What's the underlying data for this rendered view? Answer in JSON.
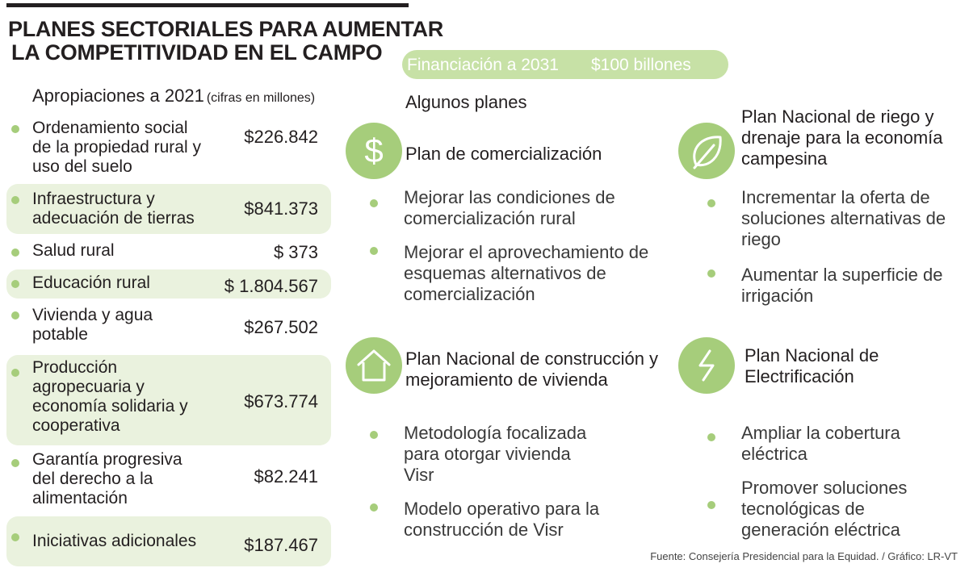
{
  "title": {
    "line1": "PLANES SECTORIALES PARA AUMENTAR",
    "line2": "LA COMPETITIVIDAD EN EL CAMPO"
  },
  "appropriations": {
    "heading": "Apropiaciones a 2021",
    "subheading": "(cifras en millones)",
    "items": [
      {
        "label": "Ordenamiento social de la propiedad rural y uso del suelo",
        "amount": "$226.842"
      },
      {
        "label": "Infraestructura y adecuación de tierras",
        "amount": "$841.373"
      },
      {
        "label": "Salud rural",
        "amount": "$ 373"
      },
      {
        "label": "Educación rural",
        "amount": "$ 1.804.567"
      },
      {
        "label": "Vivienda y agua potable",
        "amount": "$267.502"
      },
      {
        "label": "Producción agropecuaria y economía solidaria y cooperativa",
        "amount": "$673.774"
      },
      {
        "label": "Garantía progresiva del derecho a la alimentación",
        "amount": "$82.241"
      },
      {
        "label": "Iniciativas adicionales",
        "amount": "$187.467"
      }
    ]
  },
  "financing": {
    "label": "Financiación a 2031",
    "value": "$100 billones"
  },
  "plans": {
    "heading": "Algunos planes",
    "items": [
      {
        "icon": "dollar-icon",
        "title": "Plan de comercialización",
        "points": [
          "Mejorar las condiciones de comercialización rural",
          "Mejorar el aprovechamiento de esquemas alternativos de comercialización"
        ]
      },
      {
        "icon": "leaf-icon",
        "title": "Plan Nacional de riego y drenaje para la economía campesina",
        "points": [
          "Incrementar la oferta de soluciones alternativas de riego",
          "Aumentar la superficie de irrigación"
        ]
      },
      {
        "icon": "house-icon",
        "title": "Plan Nacional de construcción y mejoramiento de vivienda",
        "points": [
          "Metodología focalizada para otorgar vivienda Visr",
          "Modelo operativo para la construcción de Visr"
        ]
      },
      {
        "icon": "lightning-icon",
        "title": "Plan Nacional de Electrificación",
        "points": [
          "Ampliar la cobertura eléctrica",
          "Promover soluciones tecnológicas de generación eléctrica"
        ]
      }
    ]
  },
  "source": "Fuente: Consejería Presidencial para la Equidad. / Gráfico: LR-VT",
  "colors": {
    "accent": "#a6cd7b",
    "row_shade": "#eaf2de",
    "pill": "#c7e1a6",
    "text": "#231f20"
  }
}
